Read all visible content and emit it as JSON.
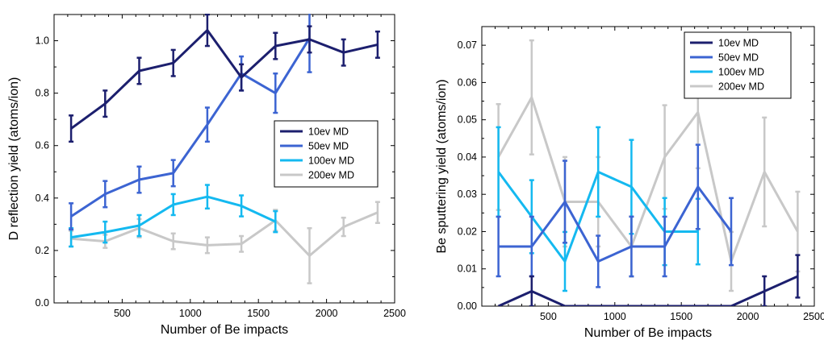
{
  "chart_data": [
    {
      "type": "line",
      "title": "",
      "xlabel": "Number of Be impacts",
      "ylabel": "D reflection yield (atoms/ion)",
      "xlim": [
        0,
        2500
      ],
      "ylim": [
        0,
        1.1
      ],
      "xticks": [
        500,
        1000,
        1500,
        2000,
        2500
      ],
      "yticks": [
        0.0,
        0.2,
        0.4,
        0.6,
        0.8,
        1.0
      ],
      "ytick_decimals": 1,
      "grid": false,
      "legend_position": "right-middle",
      "series": [
        {
          "name": "10ev MD",
          "color": "#1c1f6e",
          "x": [
            125,
            375,
            625,
            875,
            1125,
            1375,
            1625,
            1875,
            2125,
            2375
          ],
          "y": [
            0.665,
            0.76,
            0.885,
            0.915,
            1.04,
            0.86,
            0.98,
            1.005,
            0.955,
            0.985
          ],
          "err": [
            0.05,
            0.05,
            0.05,
            0.05,
            0.06,
            0.05,
            0.05,
            0.05,
            0.05,
            0.05
          ]
        },
        {
          "name": "50ev MD",
          "color": "#3c64d2",
          "x": [
            125,
            375,
            625,
            875,
            1125,
            1375,
            1625,
            1875
          ],
          "y": [
            0.33,
            0.415,
            0.47,
            0.495,
            0.68,
            0.875,
            0.8,
            1.01
          ],
          "err": [
            0.05,
            0.05,
            0.05,
            0.05,
            0.065,
            0.065,
            0.075,
            0.13
          ]
        },
        {
          "name": "100ev MD",
          "color": "#14b9f0",
          "x": [
            125,
            375,
            625,
            875,
            1125,
            1375,
            1625
          ],
          "y": [
            0.25,
            0.27,
            0.295,
            0.375,
            0.405,
            0.37,
            0.31
          ],
          "err": [
            0.035,
            0.04,
            0.04,
            0.04,
            0.045,
            0.04,
            0.04
          ]
        },
        {
          "name": "200ev MD",
          "color": "#c8c8c8",
          "x": [
            125,
            375,
            625,
            875,
            1125,
            1375,
            1625,
            1875,
            2125,
            2375
          ],
          "y": [
            0.245,
            0.235,
            0.285,
            0.235,
            0.22,
            0.225,
            0.315,
            0.18,
            0.29,
            0.345
          ],
          "err": [
            0.03,
            0.025,
            0.035,
            0.03,
            0.03,
            0.03,
            0.04,
            0.105,
            0.035,
            0.04
          ]
        }
      ]
    },
    {
      "type": "line",
      "title": "",
      "xlabel": "Number of Be impacts",
      "ylabel": "Be sputtering yield (atoms/ion)",
      "xlim": [
        0,
        2500
      ],
      "ylim": [
        0,
        0.075
      ],
      "xticks": [
        500,
        1000,
        1500,
        2000,
        2500
      ],
      "yticks": [
        0,
        0.01,
        0.02,
        0.03,
        0.04,
        0.05,
        0.06,
        0.07
      ],
      "ytick_decimals": 2,
      "grid": false,
      "legend_position": "top-right",
      "series": [
        {
          "name": "10ev MD",
          "color": "#1c1f6e",
          "x": [
            125,
            375,
            625,
            875,
            1125,
            1375,
            1625,
            1875,
            2125,
            2375
          ],
          "y": [
            0,
            0.004,
            0,
            0,
            0,
            0,
            0,
            0,
            0.004,
            0.008
          ],
          "err": [
            0,
            0.004,
            0,
            0,
            0,
            0,
            0,
            0,
            0.004,
            0.0057
          ]
        },
        {
          "name": "50ev MD",
          "color": "#3c64d2",
          "x": [
            125,
            375,
            625,
            875,
            1125,
            1375,
            1625,
            1875
          ],
          "y": [
            0.016,
            0.016,
            0.028,
            0.012,
            0.016,
            0.016,
            0.032,
            0.02
          ],
          "err": [
            0.008,
            0.008,
            0.011,
            0.0069,
            0.008,
            0.008,
            0.0113,
            0.009
          ]
        },
        {
          "name": "100ev MD",
          "color": "#14b9f0",
          "x": [
            125,
            375,
            625,
            875,
            1125,
            1375,
            1625
          ],
          "y": [
            0.036,
            0.024,
            0.012,
            0.036,
            0.032,
            0.02,
            0.02
          ],
          "err": [
            0.012,
            0.0098,
            0.0079,
            0.012,
            0.0126,
            0.009,
            0.0088
          ]
        },
        {
          "name": "200ev MD",
          "color": "#c8c8c8",
          "x": [
            125,
            375,
            625,
            875,
            1125,
            1375,
            1625,
            1875,
            2125,
            2375
          ],
          "y": [
            0.04,
            0.056,
            0.028,
            0.028,
            0.016,
            0.04,
            0.052,
            0.012,
            0.036,
            0.02
          ],
          "err": [
            0.0142,
            0.0153,
            0.012,
            0.012,
            0.0081,
            0.0139,
            0.015,
            0.0079,
            0.0146,
            0.0107
          ]
        }
      ]
    }
  ]
}
